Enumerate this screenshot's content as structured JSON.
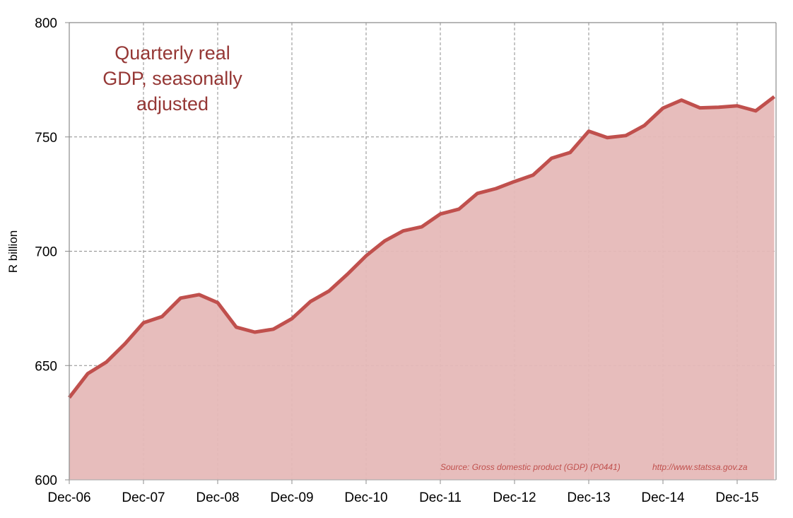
{
  "chart_data": {
    "type": "area",
    "title": "Quarterly real GDP, seasonally adjusted",
    "title_lines": [
      "Quarterly real",
      "GDP, seasonally",
      "adjusted"
    ],
    "xlabel": "",
    "ylabel": "R billion",
    "ylim": [
      600,
      800
    ],
    "yticks": [
      600,
      650,
      700,
      750,
      800
    ],
    "ytick_labels": [
      "600",
      "650",
      "700",
      "750",
      "800"
    ],
    "xtick_labels": [
      "Dec-06",
      "Dec-07",
      "Dec-08",
      "Dec-09",
      "Dec-10",
      "Dec-11",
      "Dec-12",
      "Dec-13",
      "Dec-14",
      "Dec-15"
    ],
    "grid": true,
    "frequency": "quarterly",
    "x_start": "Dec-06",
    "x_end": "Jun-16",
    "series": [
      {
        "name": "Real GDP (seasonally adjusted)",
        "color": "#c0504d",
        "fill": "#e6b9b8",
        "values": [
          636,
          646.5,
          651.5,
          659.5,
          668.7,
          671.4,
          679.5,
          681,
          677.5,
          666.8,
          664.6,
          665.9,
          670.5,
          678,
          682.6,
          690,
          698,
          704.5,
          708.9,
          710.7,
          716.3,
          718.4,
          725.3,
          727.4,
          730.5,
          733.3,
          740.7,
          743.2,
          752.5,
          749.7,
          750.6,
          755,
          762.6,
          766.1,
          762.7,
          763,
          763.6,
          761.4,
          767.6
        ]
      }
    ],
    "source_note": "Source: Gross domestic product (GDP) (P0441)",
    "source_url": "http://www.statssa.gov.za"
  }
}
